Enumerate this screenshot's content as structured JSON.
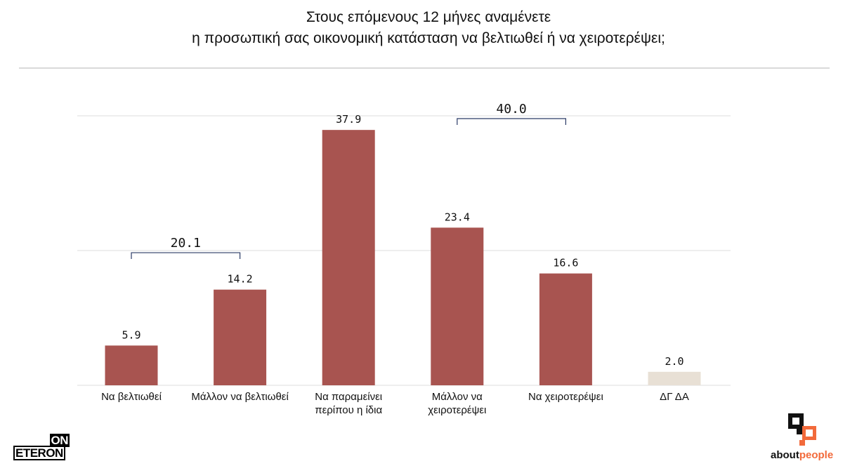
{
  "title_lines": [
    "Στους επόμενους 12 μήνες αναμένετε",
    "η προσωπική σας οικονομική κατάσταση να βελτιωθεί ή να χειροτερέψει;"
  ],
  "chart_data": {
    "type": "bar",
    "title": "Στους επόμενους 12 μήνες αναμένετε η προσωπική σας οικονομική κατάσταση να βελτιωθεί ή να χειροτερέψει;",
    "categories": [
      [
        "Να βελτιωθεί"
      ],
      [
        "Μάλλον να βελτιωθεί"
      ],
      [
        "Να παραμείνει",
        "περίπου η ίδια"
      ],
      [
        "Μάλλον να",
        "χειροτερέψει"
      ],
      [
        "Να χειροτερέψει"
      ],
      [
        "ΔΓ ΔΑ"
      ]
    ],
    "values": [
      5.9,
      14.2,
      37.9,
      23.4,
      16.6,
      2.0
    ],
    "value_labels": [
      "5.9",
      "14.2",
      "37.9",
      "23.4",
      "16.6",
      "2.0"
    ],
    "bar_colors": [
      "#a85450",
      "#a85450",
      "#a85450",
      "#a85450",
      "#a85450",
      "#e8e0d5"
    ],
    "ylim": [
      0,
      40
    ],
    "gridlines": [
      20,
      40
    ],
    "xlabel": "",
    "ylabel": "",
    "groups": [
      {
        "label": "20.1",
        "value": 20.1,
        "from": 0,
        "to": 1
      },
      {
        "label": "40.0",
        "value": 40.0,
        "from": 3,
        "to": 4
      }
    ]
  },
  "colors": {
    "bar": "#a85450",
    "bar_muted": "#e8e0d5",
    "grid": "#dcdcdc",
    "bracket": "#2a3a66",
    "accent": "#f26a3b"
  },
  "logos": {
    "eteron_top": "ON",
    "eteron_bottom": "ETERON",
    "aboutpeople_a": "about",
    "aboutpeople_b": "people"
  }
}
